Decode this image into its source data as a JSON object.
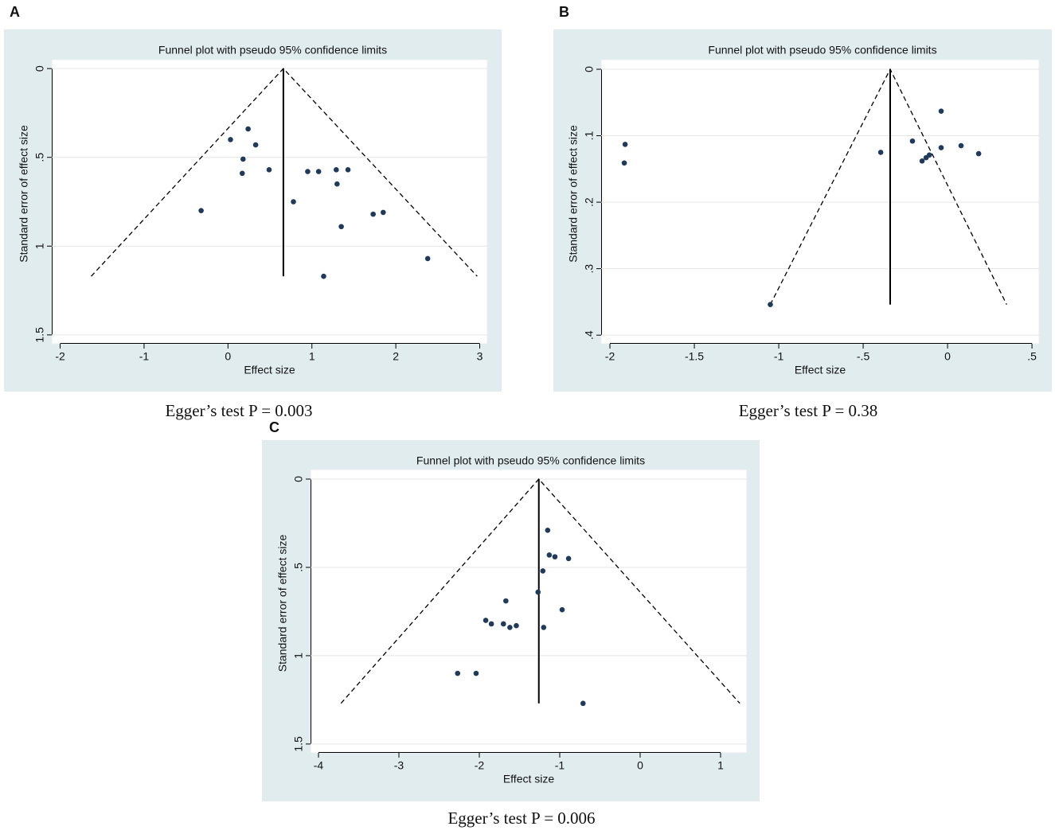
{
  "chart_data": [
    {
      "type": "scatter",
      "panel_label": "A",
      "title": "Funnel plot with pseudo 95% confidence limits",
      "x_label": "Effect size",
      "y_label": "Standard error of effect size",
      "caption": "Egger’s test P = 0.003",
      "x": [
        0.03,
        0.24,
        0.33,
        0.18,
        0.17,
        0.49,
        -0.32,
        0.78,
        0.95,
        1.08,
        1.29,
        1.43,
        1.3,
        1.35,
        1.73,
        1.85,
        2.38,
        1.14
      ],
      "values": [
        0.4,
        0.34,
        0.43,
        0.51,
        0.59,
        0.57,
        0.8,
        0.75,
        0.58,
        0.58,
        0.57,
        0.57,
        0.65,
        0.89,
        0.82,
        0.81,
        1.07,
        1.17
      ],
      "color": "#1f3a5a",
      "lines": [
        {
          "x": [
            -1.63,
            0.66,
            2.97
          ],
          "y": [
            1.17,
            0,
            1.17
          ],
          "dash": true
        },
        {
          "x": [
            0.66,
            0.66
          ],
          "y": [
            0,
            1.17
          ],
          "dash": false
        }
      ],
      "xlim": [
        -2.1,
        3.09
      ],
      "xticks": [
        -2,
        -1,
        0,
        1,
        2,
        3
      ],
      "ylim": [
        -0.05,
        1.55
      ],
      "yticks": [
        0,
        {
          "value": 0.5,
          "label": ".5"
        },
        1,
        1.5
      ],
      "y_reversed": true,
      "grid": true
    },
    {
      "type": "scatter",
      "panel_label": "B",
      "title": "Funnel plot with pseudo 95% confidence limits",
      "x_label": "Effect size",
      "y_label": "Standard error of effect size",
      "caption": "Egger’s test P = 0.38",
      "x": [
        -1.91,
        -1.915,
        -1.05,
        -0.396,
        -0.208,
        -0.038,
        -0.038,
        0.08,
        0.184,
        -0.151,
        -0.127,
        -0.108
      ],
      "values": [
        0.113,
        0.141,
        0.354,
        0.125,
        0.108,
        0.063,
        0.118,
        0.115,
        0.127,
        0.138,
        0.133,
        0.129
      ],
      "color": "#1f3a5a",
      "lines": [
        {
          "x": [
            -1.05,
            -0.34,
            0.35
          ],
          "y": [
            0.354,
            0,
            0.354
          ],
          "dash": true
        },
        {
          "x": [
            -0.34,
            -0.34
          ],
          "y": [
            0,
            0.354
          ],
          "dash": false
        }
      ],
      "xlim": [
        -2.052,
        0.542
      ],
      "xticks": [
        -2,
        -1.5,
        -1,
        {
          "value": -0.5,
          "label": "-.5"
        },
        0,
        {
          "value": 0.5,
          "label": ".5"
        }
      ],
      "ylim": [
        -0.0144,
        0.413
      ],
      "yticks": [
        0,
        {
          "value": 0.1,
          "label": ".1"
        },
        {
          "value": 0.2,
          "label": ".2"
        },
        {
          "value": 0.3,
          "label": ".3"
        },
        {
          "value": 0.4,
          "label": ".4"
        }
      ],
      "y_reversed": true,
      "grid": true
    },
    {
      "type": "scatter",
      "panel_label": "C",
      "title": "Funnel plot with pseudo 95% confidence limits",
      "x_label": "Effect size",
      "y_label": "Standard error of effect size",
      "caption": "Egger’s test P = 0.006",
      "x": [
        -1.15,
        -1.13,
        -1.06,
        -0.89,
        -1.21,
        -1.27,
        -1.67,
        -0.97,
        -1.92,
        -1.85,
        -1.7,
        -1.62,
        -1.54,
        -1.2,
        -2.27,
        -2.04,
        -0.71
      ],
      "values": [
        0.29,
        0.43,
        0.44,
        0.45,
        0.52,
        0.64,
        0.69,
        0.74,
        0.8,
        0.82,
        0.82,
        0.84,
        0.83,
        0.84,
        1.1,
        1.1,
        1.27
      ],
      "color": "#1f3a5a",
      "lines": [
        {
          "x": [
            -3.72,
            -1.26,
            1.24
          ],
          "y": [
            1.27,
            0,
            1.27
          ],
          "dash": true
        },
        {
          "x": [
            -1.26,
            -1.26
          ],
          "y": [
            0,
            1.27
          ],
          "dash": false
        }
      ],
      "xlim": [
        -4.099,
        1.327
      ],
      "xticks": [
        -4,
        -3,
        -2,
        -1,
        0,
        1
      ],
      "ylim": [
        -0.054,
        1.55
      ],
      "yticks": [
        0,
        {
          "value": 0.5,
          "label": ".5"
        },
        1,
        1.5
      ],
      "y_reversed": true,
      "grid": true
    }
  ]
}
